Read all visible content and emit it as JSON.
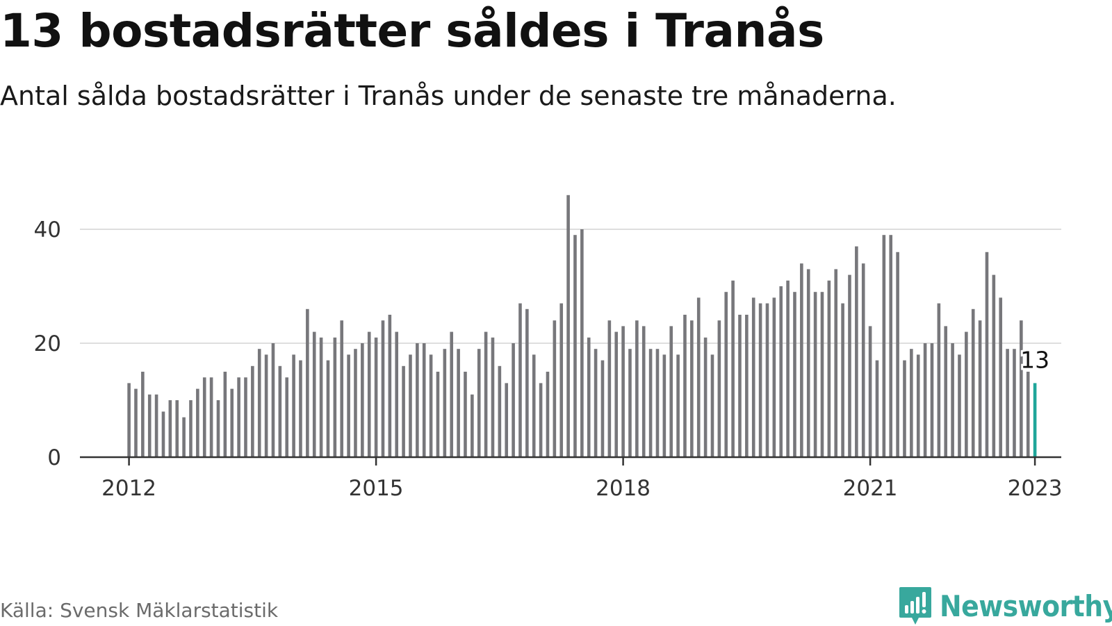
{
  "header": {
    "title": "13 bostadsrätter såldes i Tranås",
    "subtitle": "Antal sålda bostadsrätter i Tranås under de senaste tre månaderna."
  },
  "footer": {
    "source": "Källa: Svensk Mäklarstatistik",
    "brand": "Newsworthy",
    "brand_icon": "newsworthy-logo-icon"
  },
  "colors": {
    "bar": "#77777b",
    "highlight": "#1fa69a",
    "grid": "#dedede",
    "axis": "#333333",
    "brand": "#38a89d"
  },
  "chart_data": {
    "type": "bar",
    "title": "13 bostadsrätter såldes i Tranås",
    "subtitle": "Antal sålda bostadsrätter i Tranås under de senaste tre månaderna.",
    "x_start": "2012-01",
    "x_end": "2023-01",
    "frequency": "monthly",
    "values": [
      13,
      12,
      15,
      11,
      11,
      8,
      10,
      10,
      7,
      10,
      12,
      14,
      14,
      10,
      15,
      12,
      14,
      14,
      16,
      19,
      18,
      20,
      16,
      14,
      18,
      17,
      26,
      22,
      21,
      17,
      21,
      24,
      18,
      19,
      20,
      22,
      21,
      24,
      25,
      22,
      16,
      18,
      20,
      20,
      18,
      15,
      19,
      22,
      19,
      15,
      11,
      19,
      22,
      21,
      16,
      13,
      20,
      27,
      26,
      18,
      13,
      15,
      24,
      27,
      46,
      39,
      40,
      21,
      19,
      17,
      24,
      22,
      23,
      19,
      24,
      23,
      19,
      19,
      18,
      23,
      18,
      25,
      24,
      28,
      21,
      18,
      24,
      29,
      31,
      25,
      25,
      28,
      27,
      27,
      28,
      30,
      31,
      29,
      34,
      33,
      29,
      29,
      31,
      33,
      27,
      32,
      37,
      34,
      23,
      17,
      39,
      39,
      36,
      17,
      19,
      18,
      20,
      20,
      27,
      23,
      20,
      18,
      22,
      26,
      24,
      36,
      32,
      28,
      19,
      19,
      24,
      15,
      13
    ],
    "highlight": {
      "x": "2023-01",
      "value": 13,
      "label": "13"
    },
    "x_ticks": [
      "2012",
      "2015",
      "2018",
      "2021",
      "2023"
    ],
    "y_ticks": [
      0,
      20,
      40
    ],
    "ylim": [
      0,
      46
    ],
    "grid": true,
    "legend": "none"
  }
}
